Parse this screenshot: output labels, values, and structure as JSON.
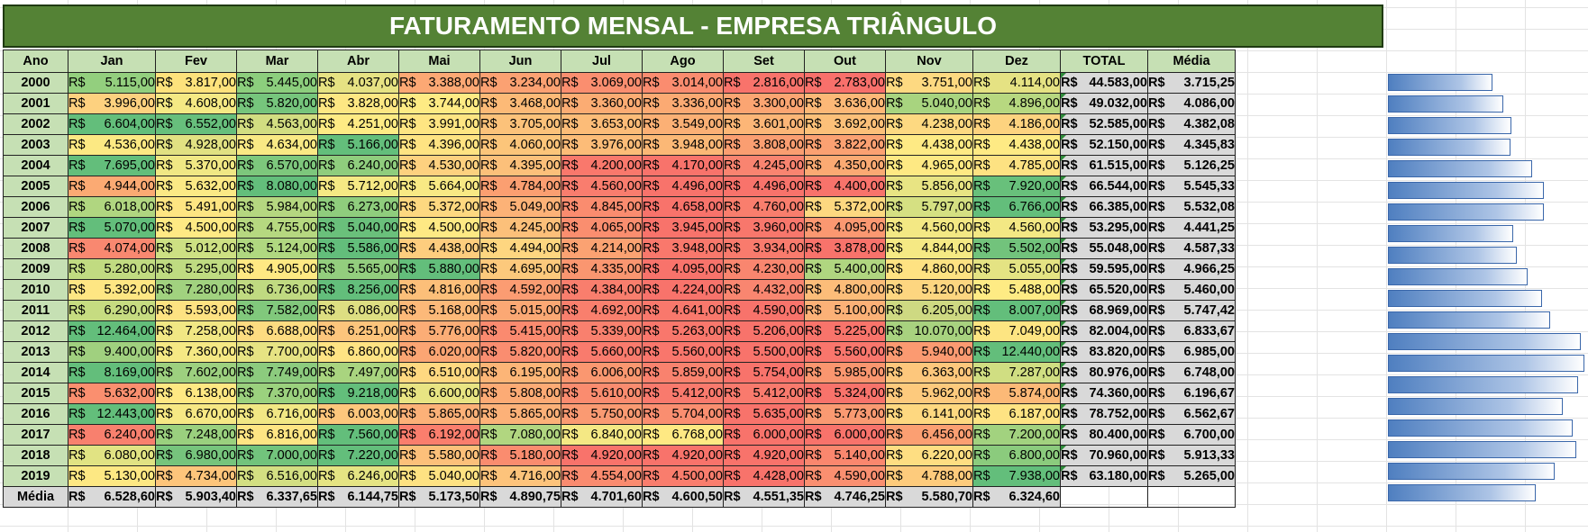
{
  "title": "FATURAMENTO MENSAL - EMPRESA TRIÂNGULO",
  "currency": "R$",
  "headers": [
    "Ano",
    "Jan",
    "Fev",
    "Mar",
    "Abr",
    "Mai",
    "Jun",
    "Jul",
    "Ago",
    "Set",
    "Out",
    "Nov",
    "Dez",
    "TOTAL",
    "Média"
  ],
  "rows": [
    {
      "year": "2000",
      "values": [
        "5.115,00",
        "3.817,00",
        "5.445,00",
        "4.037,00",
        "3.388,00",
        "3.234,00",
        "3.069,00",
        "3.014,00",
        "2.816,00",
        "2.783,00",
        "3.751,00",
        "4.114,00"
      ],
      "total": "44.583,00",
      "avg": "3.715,25",
      "colors": [
        "#93cf7e",
        "#fde27c",
        "#8cce7d",
        "#e6e283",
        "#fca874",
        "#fba172",
        "#fa8e6f",
        "#fa8c6f",
        "#f8736b",
        "#f8706b",
        "#fdd981",
        "#e5e283"
      ],
      "level": 0.532
    },
    {
      "year": "2001",
      "values": [
        "3.996,00",
        "4.608,00",
        "5.820,00",
        "3.828,00",
        "3.744,00",
        "3.468,00",
        "3.360,00",
        "3.336,00",
        "3.300,00",
        "3.636,00",
        "5.040,00",
        "4.896,00"
      ],
      "total": "49.032,00",
      "avg": "4.086,00",
      "colors": [
        "#fdd17f",
        "#f5e984",
        "#76c57c",
        "#fde783",
        "#feeb84",
        "#fcba77",
        "#fbac73",
        "#fbaa73",
        "#fba572",
        "#fcb877",
        "#a8d47f",
        "#b7d880"
      ],
      "level": 0.585
    },
    {
      "year": "2002",
      "values": [
        "6.604,00",
        "6.552,00",
        "4.563,00",
        "4.251,00",
        "3.991,00",
        "3.705,00",
        "3.653,00",
        "3.549,00",
        "3.601,00",
        "3.692,00",
        "4.238,00",
        "4.186,00"
      ],
      "total": "52.585,00",
      "avg": "4.382,08",
      "colors": [
        "#63be7b",
        "#67bf7c",
        "#d2dd81",
        "#feeb84",
        "#fee582",
        "#fcc27a",
        "#fcbc78",
        "#fbb075",
        "#fcb677",
        "#fcc079",
        "#fdd981",
        "#fdd37f"
      ],
      "level": 0.628
    },
    {
      "year": "2003",
      "values": [
        "4.536,00",
        "4.928,00",
        "4.634,00",
        "5.166,00",
        "4.396,00",
        "4.060,00",
        "3.976,00",
        "3.948,00",
        "3.808,00",
        "3.822,00",
        "4.438,00",
        "4.438,00"
      ],
      "total": "52.150,00",
      "avg": "4.345,83",
      "colors": [
        "#fce983",
        "#e1e182",
        "#f9e984",
        "#63be7b",
        "#fee382",
        "#fcc57a",
        "#fcbc78",
        "#fbb876",
        "#fa9e71",
        "#fba172",
        "#feea84",
        "#feea84"
      ],
      "level": 0.622
    },
    {
      "year": "2004",
      "values": [
        "7.695,00",
        "5.370,00",
        "6.570,00",
        "6.240,00",
        "4.530,00",
        "4.395,00",
        "4.200,00",
        "4.170,00",
        "4.245,00",
        "4.350,00",
        "4.965,00",
        "4.785,00"
      ],
      "total": "61.515,00",
      "avg": "5.126,25",
      "colors": [
        "#63be7b",
        "#f0e884",
        "#7dc77c",
        "#8fcd7d",
        "#fdd17f",
        "#fcc07a",
        "#f9786c",
        "#f8736b",
        "#f98470",
        "#fbaa73",
        "#fee983",
        "#fde282"
      ],
      "level": 0.734
    },
    {
      "year": "2005",
      "values": [
        "4.944,00",
        "5.632,00",
        "8.080,00",
        "5.712,00",
        "5.664,00",
        "4.784,00",
        "4.560,00",
        "4.496,00",
        "4.496,00",
        "4.400,00",
        "5.856,00",
        "7.920,00"
      ],
      "total": "66.544,00",
      "avg": "5.545,33",
      "colors": [
        "#fbaa73",
        "#fbe985",
        "#63be7b",
        "#f5e984",
        "#f8e984",
        "#fb9f71",
        "#f97d6e",
        "#f8736b",
        "#f8736b",
        "#f8736b",
        "#e8e483",
        "#68c07b"
      ],
      "level": 0.794
    },
    {
      "year": "2006",
      "values": [
        "6.018,00",
        "5.491,00",
        "5.984,00",
        "6.273,00",
        "5.372,00",
        "5.049,00",
        "4.845,00",
        "4.658,00",
        "4.760,00",
        "5.372,00",
        "5.797,00",
        "6.766,00"
      ],
      "total": "66.385,00",
      "avg": "5.532,08",
      "colors": [
        "#b0d680",
        "#fde582",
        "#b5d780",
        "#8fcd7d",
        "#fdd880",
        "#fcb277",
        "#fa8c6f",
        "#f8736b",
        "#f97e6d",
        "#fdd880",
        "#d5e082",
        "#63be7b"
      ],
      "level": 0.793
    },
    {
      "year": "2007",
      "values": [
        "5.070,00",
        "4.500,00",
        "4.755,00",
        "5.040,00",
        "4.500,00",
        "4.245,00",
        "4.065,00",
        "3.945,00",
        "3.960,00",
        "4.095,00",
        "4.560,00",
        "4.560,00"
      ],
      "total": "53.295,00",
      "avg": "4.441,25",
      "colors": [
        "#63be7b",
        "#fee984",
        "#b6d880",
        "#6ac07b",
        "#fee984",
        "#fcc07a",
        "#fa8e6f",
        "#f8736b",
        "#f8776c",
        "#fb9871",
        "#f3e884",
        "#f3e884"
      ],
      "level": 0.636
    },
    {
      "year": "2008",
      "values": [
        "4.074,00",
        "5.012,00",
        "5.124,00",
        "5.586,00",
        "4.438,00",
        "4.494,00",
        "4.214,00",
        "3.948,00",
        "3.934,00",
        "3.878,00",
        "4.844,00",
        "5.502,00"
      ],
      "total": "55.048,00",
      "avg": "4.587,33",
      "colors": [
        "#f98870",
        "#cde083",
        "#b0d880",
        "#63be7b",
        "#fdcd7e",
        "#fed680",
        "#fba272",
        "#f9786c",
        "#f97b6d",
        "#f8736b",
        "#f5e984",
        "#72c37c"
      ],
      "level": 0.657
    },
    {
      "year": "2009",
      "values": [
        "5.280,00",
        "5.295,00",
        "4.905,00",
        "5.565,00",
        "5.880,00",
        "4.695,00",
        "4.335,00",
        "4.095,00",
        "4.230,00",
        "5.400,00",
        "4.860,00",
        "5.055,00"
      ],
      "total": "59.595,00",
      "avg": "4.966,25",
      "colors": [
        "#c1db81",
        "#bfdb81",
        "#fee983",
        "#93ce7e",
        "#63be7b",
        "#fcc97c",
        "#fa9670",
        "#f8736b",
        "#f9866f",
        "#b0d680",
        "#fee282",
        "#e4e383"
      ],
      "level": 0.712
    },
    {
      "year": "2010",
      "values": [
        "5.392,00",
        "7.280,00",
        "6.736,00",
        "8.256,00",
        "4.816,00",
        "4.592,00",
        "4.384,00",
        "4.224,00",
        "4.432,00",
        "4.800,00",
        "5.120,00",
        "5.488,00"
      ],
      "total": "65.520,00",
      "avg": "5.460,00",
      "colors": [
        "#fee683",
        "#a1d27f",
        "#c0da81",
        "#63be7b",
        "#fcbf79",
        "#fb9c72",
        "#f97e6d",
        "#f8736b",
        "#f98670",
        "#fcbd79",
        "#fdd680",
        "#feeb84"
      ],
      "level": 0.783
    },
    {
      "year": "2011",
      "values": [
        "6.290,00",
        "5.593,00",
        "7.582,00",
        "6.086,00",
        "5.168,00",
        "5.015,00",
        "4.692,00",
        "4.641,00",
        "4.590,00",
        "5.100,00",
        "6.205,00",
        "8.007,00"
      ],
      "total": "68.969,00",
      "avg": "5.747,42",
      "colors": [
        "#c6dc81",
        "#fde282",
        "#81c87c",
        "#ddde82",
        "#fcb979",
        "#fba874",
        "#f97f6d",
        "#f9786c",
        "#f8736b",
        "#fbb177",
        "#ced982",
        "#63be7b"
      ],
      "level": 0.824
    },
    {
      "year": "2012",
      "values": [
        "12.464,00",
        "7.258,00",
        "6.688,00",
        "6.251,00",
        "5.776,00",
        "5.415,00",
        "5.339,00",
        "5.263,00",
        "5.206,00",
        "5.225,00",
        "10.070,00",
        "7.049,00"
      ],
      "total": "82.004,00",
      "avg": "6.833,67",
      "colors": [
        "#63be7b",
        "#f1e784",
        "#fddc81",
        "#fcc57c",
        "#fbad76",
        "#fa8a6f",
        "#f9806e",
        "#f9776c",
        "#f8736b",
        "#f8746b",
        "#a8d27f",
        "#fde582"
      ],
      "level": 0.98
    },
    {
      "year": "2013",
      "values": [
        "9.400,00",
        "7.360,00",
        "7.700,00",
        "6.860,00",
        "6.020,00",
        "5.820,00",
        "5.660,00",
        "5.560,00",
        "5.500,00",
        "5.560,00",
        "5.940,00",
        "12.440,00"
      ],
      "total": "83.820,00",
      "avg": "6.985,00",
      "colors": [
        "#a0d07f",
        "#f5e884",
        "#e6e383",
        "#fee383",
        "#fba573",
        "#fa8d70",
        "#f97b6d",
        "#f9766c",
        "#f8736b",
        "#f9766c",
        "#fb9a71",
        "#63be7b"
      ],
      "level": 1.0
    },
    {
      "year": "2014",
      "values": [
        "8.169,00",
        "7.602,00",
        "7.749,00",
        "7.497,00",
        "6.510,00",
        "6.195,00",
        "6.006,00",
        "5.859,00",
        "5.754,00",
        "5.985,00",
        "6.363,00",
        "7.287,00"
      ],
      "total": "80.976,00",
      "avg": "6.748,00",
      "colors": [
        "#63be7b",
        "#9dd07f",
        "#8ccb7e",
        "#a9d47f",
        "#fed880",
        "#fcb577",
        "#fa9770",
        "#f9826e",
        "#f8736b",
        "#fa966f",
        "#fdc77c",
        "#d0de82"
      ],
      "level": 0.967
    },
    {
      "year": "2015",
      "values": [
        "5.632,00",
        "6.138,00",
        "7.370,00",
        "9.218,00",
        "6.600,00",
        "5.808,00",
        "5.610,00",
        "5.412,00",
        "5.412,00",
        "5.324,00",
        "5.962,00",
        "5.874,00"
      ],
      "total": "74.360,00",
      "avg": "6.196,67",
      "colors": [
        "#fa8f6f",
        "#fee883",
        "#9bd17e",
        "#63be7b",
        "#e8e483",
        "#fcab75",
        "#fa8c6f",
        "#f97a6d",
        "#f97a6d",
        "#f8736b",
        "#fdca7d",
        "#fcb977"
      ],
      "level": 0.888
    },
    {
      "year": "2016",
      "values": [
        "12.443,00",
        "6.670,00",
        "6.716,00",
        "6.003,00",
        "5.865,00",
        "5.865,00",
        "5.750,00",
        "5.704,00",
        "5.635,00",
        "5.773,00",
        "6.141,00",
        "6.187,00"
      ],
      "total": "78.752,00",
      "avg": "6.562,67",
      "colors": [
        "#63be7b",
        "#f6e884",
        "#f1e784",
        "#fdc77c",
        "#fcb178",
        "#fcb178",
        "#fa9a72",
        "#fa8e70",
        "#f8736b",
        "#fa9a72",
        "#fed880",
        "#fee383"
      ],
      "level": 0.94
    },
    {
      "year": "2017",
      "values": [
        "6.240,00",
        "7.248,00",
        "6.816,00",
        "7.560,00",
        "6.192,00",
        "7.080,00",
        "6.840,00",
        "6.768,00",
        "6.000,00",
        "6.000,00",
        "6.456,00",
        "7.200,00"
      ],
      "total": "80.400,00",
      "avg": "6.700,00",
      "colors": [
        "#f8806e",
        "#9ad07e",
        "#fee583",
        "#63be7b",
        "#fa7e6d",
        "#b1d680",
        "#f4e884",
        "#fee983",
        "#f8736b",
        "#f8736b",
        "#fb9f72",
        "#a2d27f"
      ],
      "level": 0.96
    },
    {
      "year": "2018",
      "values": [
        "6.080,00",
        "6.980,00",
        "7.000,00",
        "7.220,00",
        "5.580,00",
        "5.180,00",
        "4.920,00",
        "4.920,00",
        "4.920,00",
        "5.140,00",
        "6.220,00",
        "6.800,00"
      ],
      "total": "70.960,00",
      "avg": "5.913,33",
      "colors": [
        "#e1e383",
        "#76c47c",
        "#72c37c",
        "#63be7b",
        "#fcc07a",
        "#fa8c6f",
        "#f8736b",
        "#f8736b",
        "#f8736b",
        "#fa876e",
        "#fede82",
        "#8bcb7d"
      ],
      "level": 0.847
    },
    {
      "year": "2019",
      "values": [
        "5.130,00",
        "4.734,00",
        "6.516,00",
        "6.246,00",
        "5.040,00",
        "4.716,00",
        "4.554,00",
        "4.500,00",
        "4.428,00",
        "4.590,00",
        "4.788,00",
        "7.938,00"
      ],
      "total": "63.180,00",
      "avg": "5.265,00",
      "colors": [
        "#fde883",
        "#fdc57b",
        "#d3df82",
        "#e5e483",
        "#fee282",
        "#fdc37b",
        "#fa8b6f",
        "#f97d6d",
        "#f8736b",
        "#fa8f70",
        "#fdcb7c",
        "#63be7b"
      ],
      "level": 0.754
    }
  ],
  "footer": {
    "label": "Média",
    "values": [
      "6.528,60",
      "5.903,40",
      "6.337,65",
      "6.144,75",
      "5.173,50",
      "4.890,75",
      "4.701,60",
      "4.600,50",
      "4.551,35",
      "4.746,25",
      "5.580,70",
      "6.324,60"
    ]
  }
}
